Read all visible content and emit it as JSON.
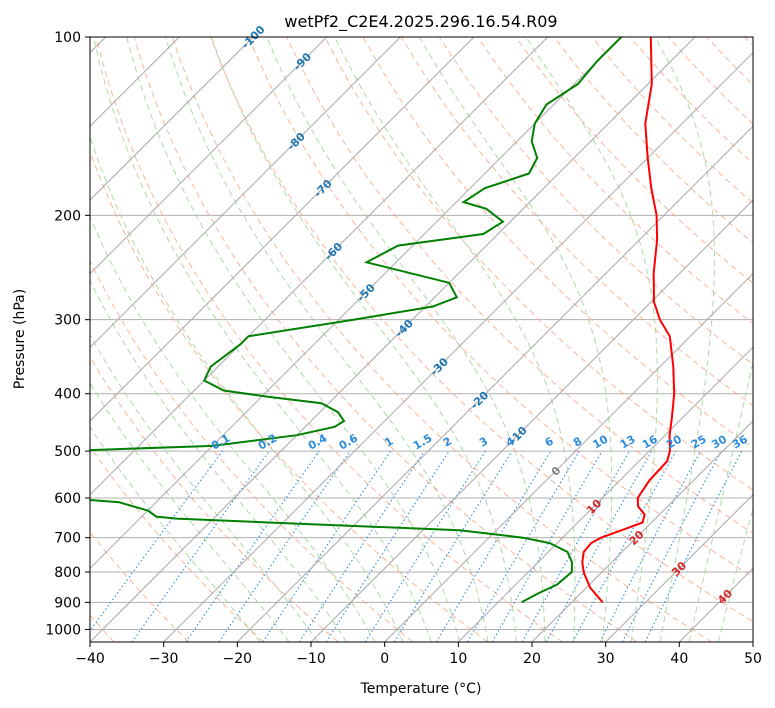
{
  "chart_data": {
    "type": "line",
    "title": "wetPf2_C2E4.2025.296.16.54.R09",
    "xlabel": "Temperature (°C)",
    "ylabel": "Pressure (hPa)",
    "xlim": [
      -40,
      50
    ],
    "ylim": [
      1050,
      100
    ],
    "y_scale": "log",
    "x_ticks": [
      -40,
      -30,
      -20,
      -10,
      0,
      10,
      20,
      30,
      40,
      50
    ],
    "x_tick_labels": [
      "−40",
      "−30",
      "−20",
      "−10",
      "0",
      "10",
      "20",
      "30",
      "40",
      "50"
    ],
    "y_ticks": [
      1000,
      900,
      800,
      700,
      600,
      500,
      400,
      300,
      200,
      100
    ],
    "y_tick_labels": [
      "1000",
      "900",
      "800",
      "700",
      "600",
      "500",
      "400",
      "300",
      "200",
      "100"
    ],
    "grid": true,
    "series": [
      {
        "color": "#ff0000",
        "points": [
          [
            900,
            24.2
          ],
          [
            850,
            20.5
          ],
          [
            800,
            17.5
          ],
          [
            770,
            16.0
          ],
          [
            740,
            14.8
          ],
          [
            715,
            14.6
          ],
          [
            700,
            15.2
          ],
          [
            680,
            17.0
          ],
          [
            660,
            18.8
          ],
          [
            640,
            18.0
          ],
          [
            620,
            16.0
          ],
          [
            600,
            14.8
          ],
          [
            560,
            14.0
          ],
          [
            520,
            13.8
          ],
          [
            500,
            12.8
          ],
          [
            470,
            10.6
          ],
          [
            440,
            8.6
          ],
          [
            400,
            5.6
          ],
          [
            360,
            1.8
          ],
          [
            320,
            -2.8
          ],
          [
            300,
            -6.4
          ],
          [
            280,
            -9.6
          ],
          [
            250,
            -13.6
          ],
          [
            220,
            -17.6
          ],
          [
            200,
            -21.0
          ],
          [
            180,
            -25.4
          ],
          [
            160,
            -30.0
          ],
          [
            140,
            -35.0
          ],
          [
            120,
            -39.5
          ],
          [
            100,
            -46.0
          ]
        ]
      },
      {
        "color": "#008000",
        "points": [
          [
            900,
            13.2
          ],
          [
            870,
            14.2
          ],
          [
            840,
            15.6
          ],
          [
            800,
            15.9
          ],
          [
            770,
            14.6
          ],
          [
            740,
            12.6
          ],
          [
            715,
            9.0
          ],
          [
            700,
            4.6
          ],
          [
            680,
            -5.0
          ],
          [
            660,
            -32.0
          ],
          [
            650,
            -45.0
          ],
          [
            645,
            -48.0
          ],
          [
            630,
            -50.0
          ],
          [
            610,
            -55.0
          ],
          [
            600,
            -63.0
          ],
          [
            500,
            -70.0
          ],
          [
            490,
            -50.0
          ],
          [
            470,
            -40.0
          ],
          [
            455,
            -36.0
          ],
          [
            445,
            -35.5
          ],
          [
            430,
            -37.5
          ],
          [
            415,
            -41.0
          ],
          [
            405,
            -49.0
          ],
          [
            395,
            -56.0
          ],
          [
            380,
            -60.0
          ],
          [
            360,
            -61.0
          ],
          [
            330,
            -60.0
          ],
          [
            320,
            -60.0
          ],
          [
            300,
            -48.0
          ],
          [
            285,
            -39.0
          ],
          [
            275,
            -37.0
          ],
          [
            260,
            -40.0
          ],
          [
            240,
            -54.0
          ],
          [
            225,
            -52.0
          ],
          [
            215,
            -42.0
          ],
          [
            205,
            -41.0
          ],
          [
            195,
            -45.0
          ],
          [
            190,
            -49.0
          ],
          [
            180,
            -48.0
          ],
          [
            170,
            -44.0
          ],
          [
            160,
            -45.0
          ],
          [
            150,
            -48.0
          ],
          [
            140,
            -50.0
          ],
          [
            130,
            -51.0
          ],
          [
            120,
            -49.5
          ],
          [
            110,
            -50.0
          ],
          [
            100,
            -50.0
          ]
        ]
      }
    ],
    "dry_adiabat_labels": [
      "-100",
      "-90",
      "-80",
      "-70",
      "-60",
      "-50",
      "-40",
      "-30",
      "-20",
      "-10",
      "0",
      "10",
      "20",
      "30",
      "40"
    ],
    "mixing_ratio_labels": [
      "0.1",
      "0.2",
      "0.4",
      "0.6",
      "1",
      "1.5",
      "2",
      "3",
      "4",
      "6",
      "8",
      "10",
      "13",
      "16",
      "20",
      "25",
      "30",
      "36"
    ],
    "colors": {
      "temperature": "#ff0000",
      "dewpoint": "#008000",
      "dry_adiabat": "#f4a582",
      "moist_adiabat": "#a6d4a0",
      "mixing_ratio": "#2b8cdf",
      "isotherm": "#a8a8a8",
      "grid": "#b0b0b0",
      "label_blue": "#1f77b4",
      "label_red": "#d62728"
    }
  }
}
